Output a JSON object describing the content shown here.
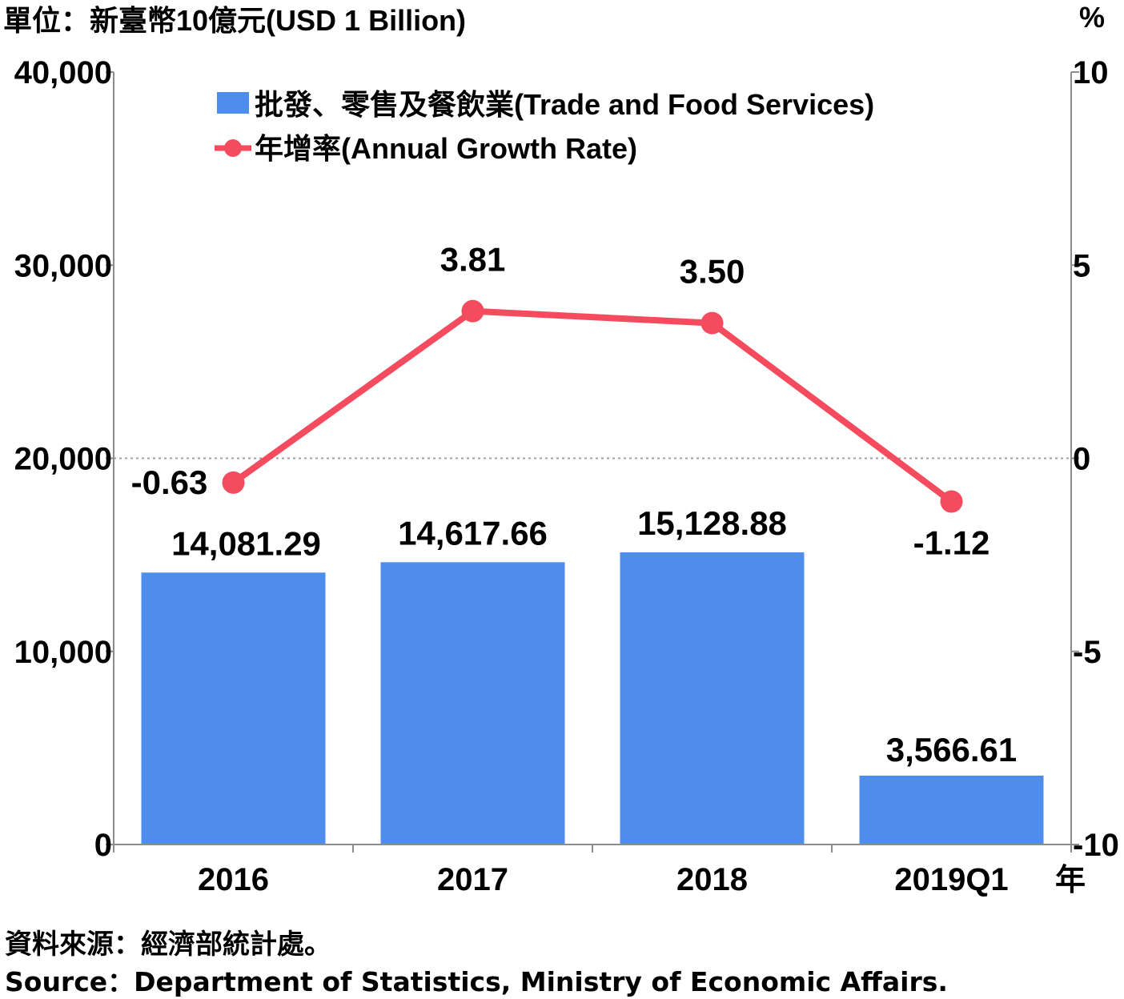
{
  "header": {
    "unit_left": "單位：新臺幣10億元(USD 1 Billion)",
    "unit_right": "%",
    "x_unit": "年"
  },
  "footer": {
    "source_zh": "資料來源：經濟部統計處。",
    "source_en": "Source：Department of Statistics, Ministry of Economic Affairs."
  },
  "colors": {
    "bar": "#4f8ded",
    "bar_label": "#4f8ded",
    "line": "#f44c5e",
    "line_label": "#f44c5e",
    "axis": "#8c8c8c",
    "zero_line": "#a0a0a0"
  },
  "chart_data": {
    "type": "bar",
    "categories": [
      "2016",
      "2017",
      "2018",
      "2019Q1"
    ],
    "y_left": {
      "ticks": [
        "0",
        "10,000",
        "20,000",
        "30,000",
        "40,000"
      ],
      "ylim": [
        0,
        40000
      ]
    },
    "y_right": {
      "ticks": [
        "-10",
        "-5",
        "0",
        "5",
        "10"
      ],
      "ylim": [
        -10,
        10
      ]
    },
    "series": [
      {
        "name": "批發、零售及餐飲業(Trade and Food Services)",
        "type": "bar",
        "axis": "left",
        "values": [
          14081.29,
          14617.66,
          15128.88,
          3566.61
        ],
        "labels": [
          "14,081.29",
          "14,617.66",
          "15,128.88",
          "3,566.61"
        ]
      },
      {
        "name": "年增率(Annual Growth Rate)",
        "type": "line",
        "axis": "right",
        "values": [
          -0.63,
          3.81,
          3.5,
          -1.12
        ],
        "labels": [
          "-0.63",
          "3.81",
          "3.50",
          "-1.12"
        ]
      }
    ],
    "legend": "top-left",
    "grid": false
  }
}
